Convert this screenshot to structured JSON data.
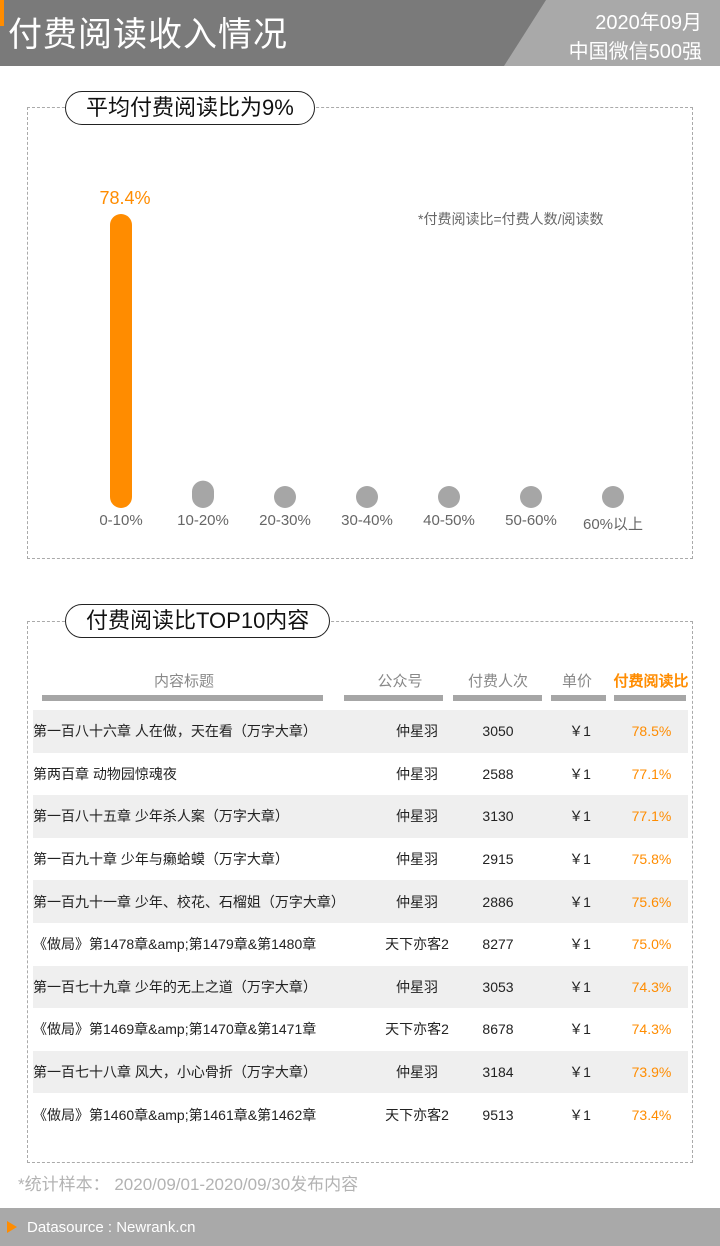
{
  "header": {
    "title": "付费阅读收入情况",
    "date": "2020年09月",
    "subtitle": "中国微信500强"
  },
  "section1": {
    "title": "平均付费阅读比为9%",
    "note": "*付费阅读比=付费人数/阅读数"
  },
  "chart_data": {
    "type": "bar",
    "title": "平均付费阅读比为9%",
    "categories": [
      "0-10%",
      "10-20%",
      "20-30%",
      "30-40%",
      "40-50%",
      "50-60%",
      "60%以上"
    ],
    "values": [
      78.4,
      7.3,
      4.3,
      3.0,
      2.4,
      2.2,
      1.7
    ],
    "data_labels": [
      "78.4%",
      "",
      "",
      "",
      "",
      "",
      ""
    ],
    "highlight_index": 0,
    "ylim": [
      0,
      80
    ],
    "grid": false,
    "colors": {
      "highlight": "#ff8c00",
      "default": "#a6a6a6"
    }
  },
  "section2": {
    "title": "付费阅读比TOP10内容",
    "columns": [
      "内容标题",
      "公众号",
      "付费人次",
      "单价",
      "付费阅读比"
    ],
    "rows": [
      {
        "title": "第一百八十六章 人在做，天在看（万字大章）",
        "account": "仲星羽",
        "payers": "3050",
        "price": "￥1",
        "ratio": "78.5%"
      },
      {
        "title": "第两百章 动物园惊魂夜",
        "account": "仲星羽",
        "payers": "2588",
        "price": "￥1",
        "ratio": "77.1%"
      },
      {
        "title": "第一百八十五章 少年杀人案（万字大章）",
        "account": "仲星羽",
        "payers": "3130",
        "price": "￥1",
        "ratio": "77.1%"
      },
      {
        "title": "第一百九十章 少年与癞蛤蟆（万字大章）",
        "account": "仲星羽",
        "payers": "2915",
        "price": "￥1",
        "ratio": "75.8%"
      },
      {
        "title": "第一百九十一章 少年、校花、石榴姐（万字大章）",
        "account": "仲星羽",
        "payers": "2886",
        "price": "￥1",
        "ratio": "75.6%"
      },
      {
        "title": "《做局》第1478章&amp;第1479章&第1480章",
        "account": "天下亦客2",
        "payers": "8277",
        "price": "￥1",
        "ratio": "75.0%"
      },
      {
        "title": "第一百七十九章 少年的无上之道（万字大章）",
        "account": "仲星羽",
        "payers": "3053",
        "price": "￥1",
        "ratio": "74.3%"
      },
      {
        "title": "《做局》第1469章&amp;第1470章&第1471章",
        "account": "天下亦客2",
        "payers": "8678",
        "price": "￥1",
        "ratio": "74.3%"
      },
      {
        "title": "第一百七十八章 风大，小心骨折（万字大章）",
        "account": "仲星羽",
        "payers": "3184",
        "price": "￥1",
        "ratio": "73.9%"
      },
      {
        "title": "《做局》第1460章&amp;第1461章&第1462章",
        "account": "天下亦客2",
        "payers": "9513",
        "price": "￥1",
        "ratio": "73.4%"
      }
    ]
  },
  "footnote": "*统计样本： 2020/09/01-2020/09/30发布内容",
  "footer": {
    "source": "Datasource : Newrank.cn"
  }
}
